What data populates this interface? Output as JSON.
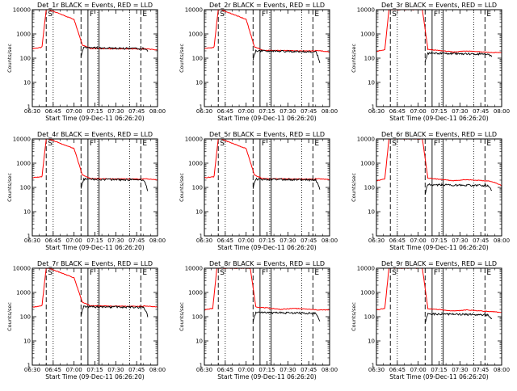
{
  "chart_data": [
    {
      "type": "line",
      "title": "Det_1r BLACK = Events, RED = LLD",
      "profile": "flare",
      "plateau_red": 250,
      "plateau_black": 270,
      "end_red": 180,
      "end_black": 200
    },
    {
      "type": "line",
      "title": "Det_2r BLACK = Events, RED = LLD",
      "profile": "flare",
      "plateau_red": 210,
      "plateau_black": 200,
      "end_red": 150,
      "end_black": 60
    },
    {
      "type": "line",
      "title": "Det_3r BLACK = Events, RED = LLD",
      "profile": "steady",
      "plateau_red": 190,
      "plateau_black": 160,
      "end_red": 170,
      "end_black": 110
    },
    {
      "type": "line",
      "title": "Det_4r BLACK = Events, RED = LLD",
      "profile": "flare",
      "plateau_red": 230,
      "plateau_black": 220,
      "end_red": 180,
      "end_black": 70
    },
    {
      "type": "line",
      "title": "Det_5r BLACK = Events, RED = LLD",
      "profile": "flare",
      "plateau_red": 230,
      "plateau_black": 220,
      "end_red": 190,
      "end_black": 80
    },
    {
      "type": "line",
      "title": "Det_6r BLACK = Events, RED = LLD",
      "profile": "steady",
      "plateau_red": 200,
      "plateau_black": 130,
      "end_red": 120,
      "end_black": 70
    },
    {
      "type": "line",
      "title": "Det_7r BLACK = Events, RED = LLD",
      "profile": "flare",
      "plateau_red": 280,
      "plateau_black": 260,
      "end_red": 220,
      "end_black": 100
    },
    {
      "type": "line",
      "title": "Det_8r BLACK = Events, RED = LLD",
      "profile": "steady",
      "plateau_red": 210,
      "plateau_black": 150,
      "end_red": 190,
      "end_black": 60
    },
    {
      "type": "line",
      "title": "Det_9r BLACK = Events, RED = LLD",
      "profile": "steady",
      "plateau_red": 180,
      "plateau_black": 130,
      "end_red": 150,
      "end_black": 80
    }
  ],
  "shared": {
    "xlabel": "Start Time (09-Dec-11 06:26:20)",
    "ylabel": "Counts/sec",
    "x_ticks": [
      "06:30",
      "06:45",
      "07:00",
      "07:15",
      "07:30",
      "07:45",
      "08:00"
    ],
    "y_ticks": [
      "1",
      "10",
      "100",
      "1000",
      "10000"
    ],
    "xlim_minutes": [
      0,
      90
    ],
    "ylim": [
      1,
      10000
    ],
    "y_scale": "log",
    "markers": {
      "solid": [
        40,
        48
      ],
      "dashed": [
        10,
        35,
        78
      ],
      "dotted": [
        15,
        47,
        70
      ]
    },
    "annotations": [
      {
        "label": "S",
        "minute": 10
      },
      {
        "label": "F",
        "minute": 40
      },
      {
        "label": "E",
        "minute": 78
      }
    ],
    "colors": {
      "events": "#000000",
      "lld": "#ff0000",
      "axis": "#000000"
    }
  }
}
